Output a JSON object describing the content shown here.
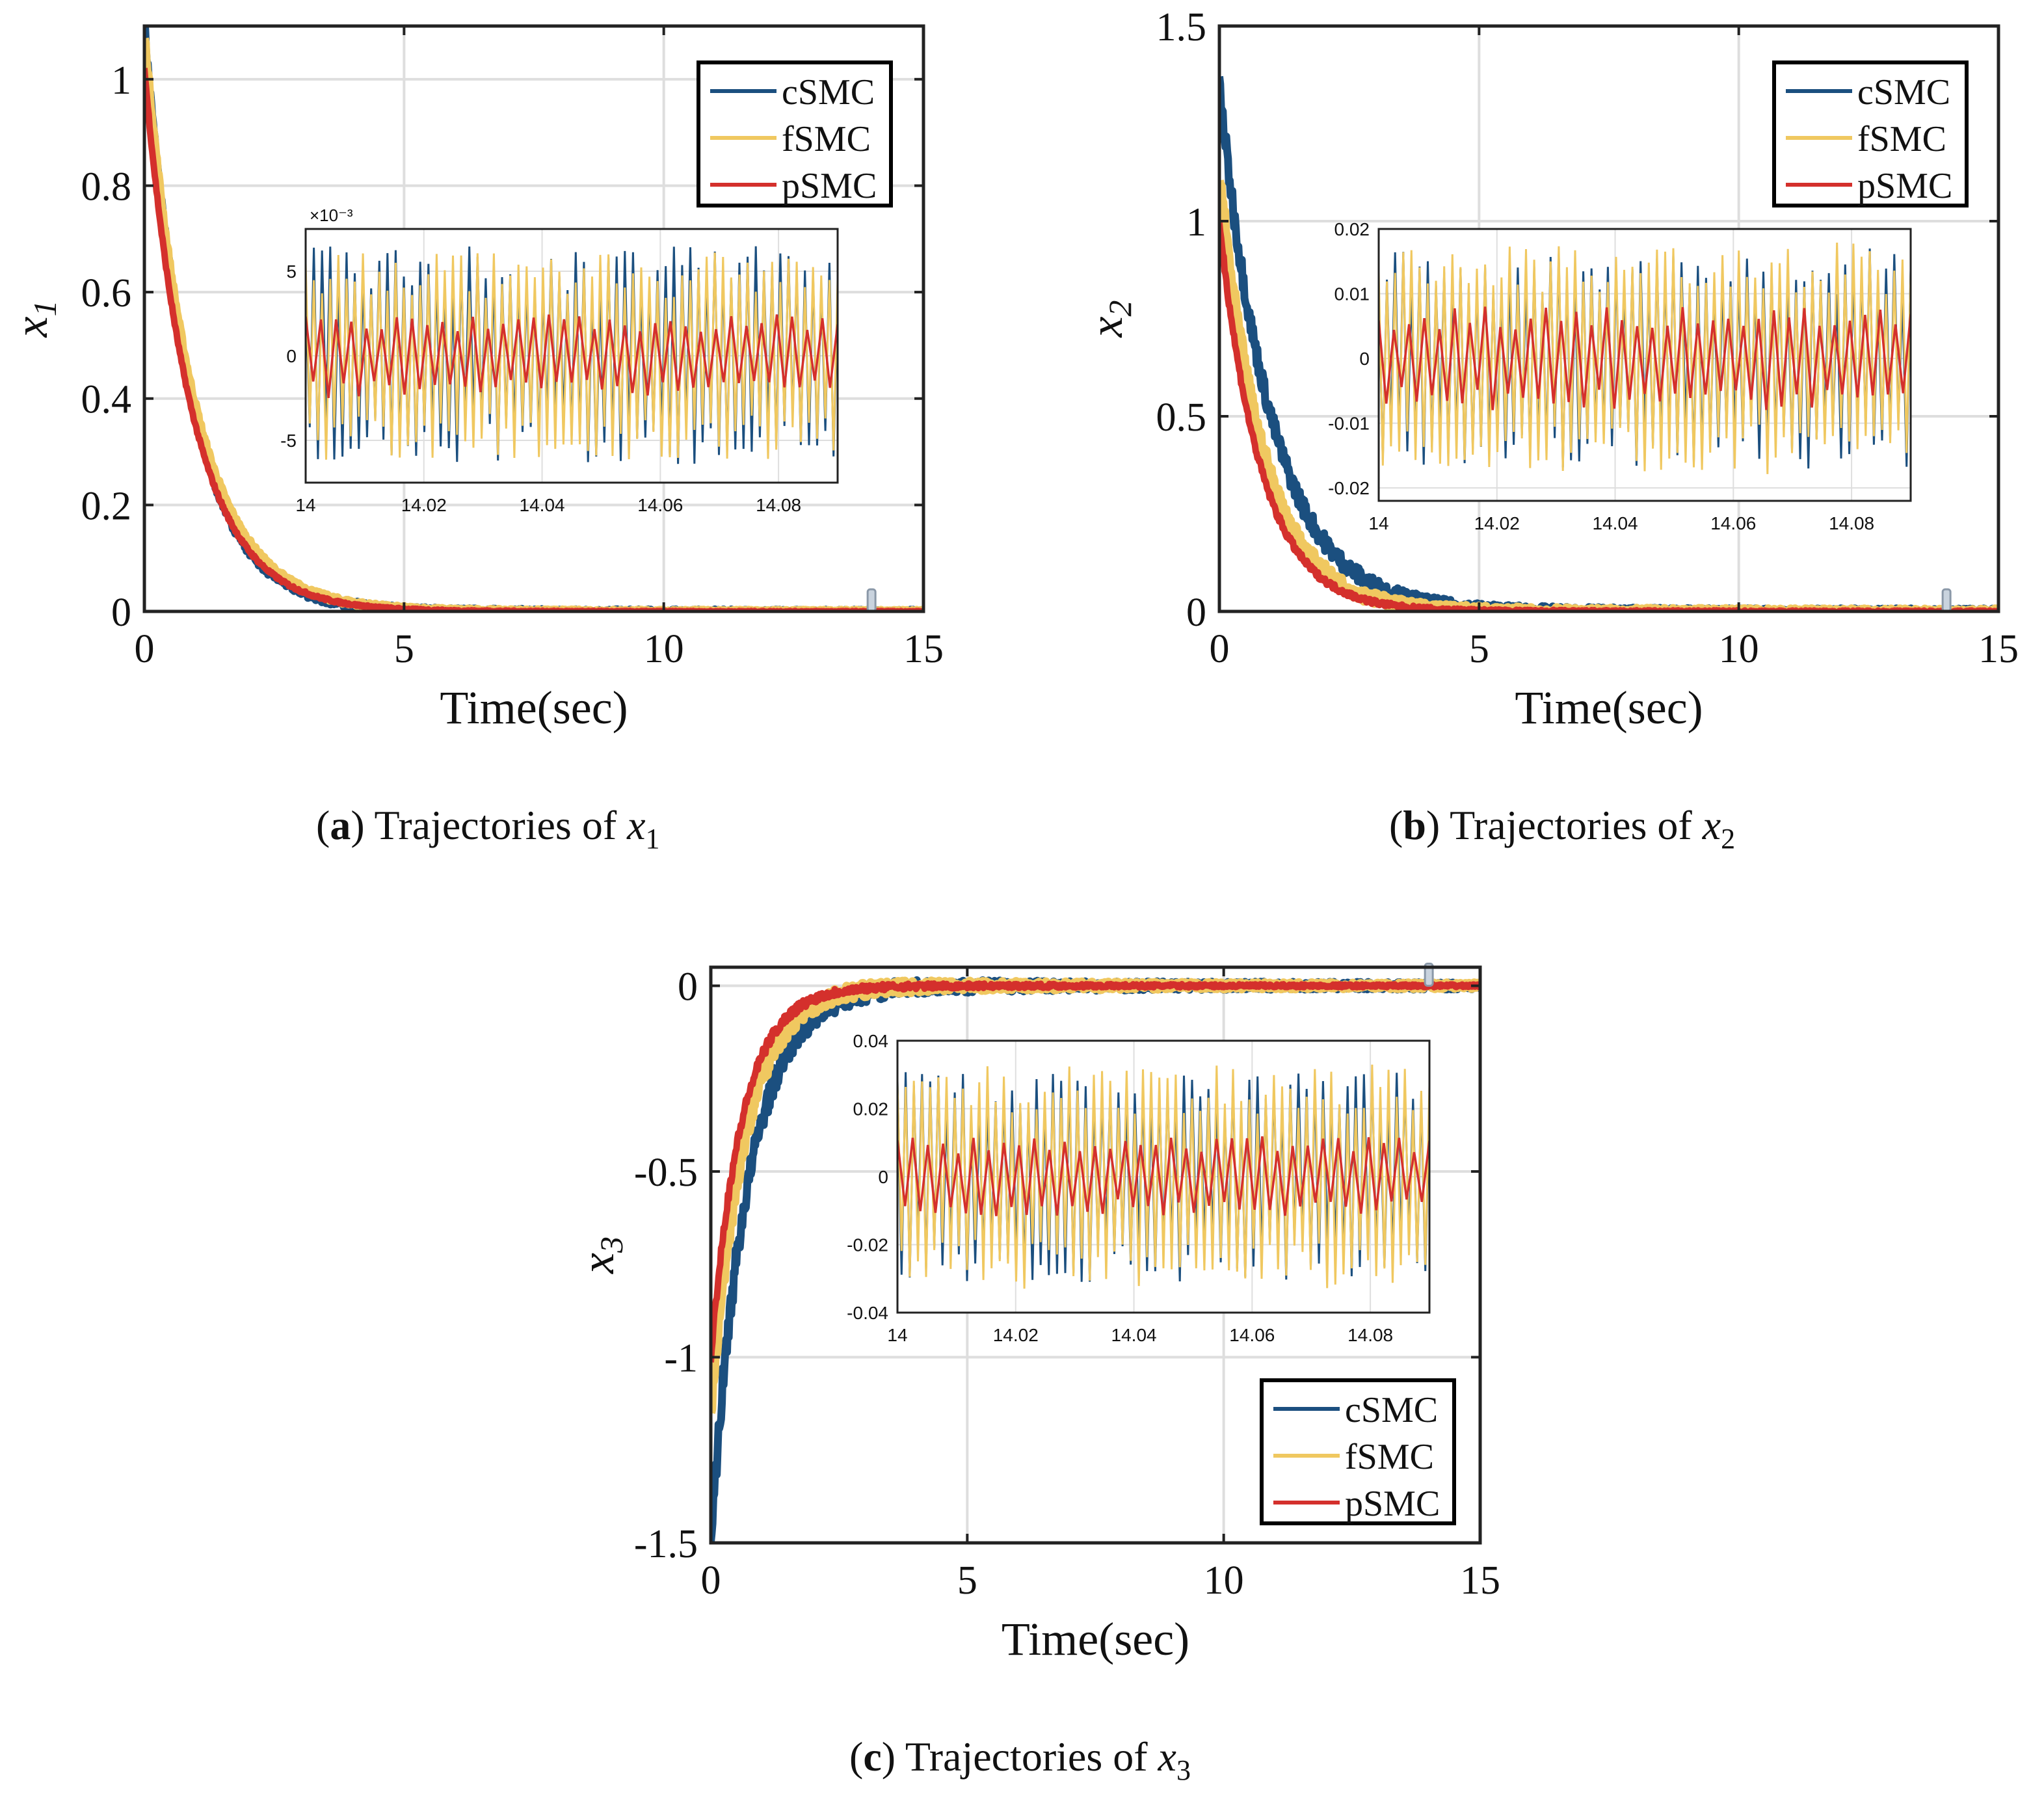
{
  "colors": {
    "cSMC": "#1b4f7f",
    "fSMC": "#f0c860",
    "pSMC": "#d4302c",
    "grid": "#dedede",
    "axis": "#222222"
  },
  "chart_data": [
    {
      "type": "line",
      "panel": "a",
      "xlabel": "Time(sec)",
      "ylabel": "x",
      "ylabel_sub": "1",
      "xlim": [
        0,
        15
      ],
      "ylim": [
        0,
        1.1
      ],
      "xticks": [
        0,
        5,
        10,
        15
      ],
      "xtick_labels": [
        "0",
        "5",
        "10",
        "15"
      ],
      "yticks": [
        0,
        0.2,
        0.4,
        0.6,
        0.8,
        1
      ],
      "ytick_labels": [
        "0",
        "0.2",
        "0.4",
        "0.6",
        "0.8",
        "1"
      ],
      "legend": {
        "position": "top-right",
        "entries": [
          "cSMC",
          "fSMC",
          "pSMC"
        ]
      },
      "series": [
        {
          "name": "cSMC",
          "x0": 1.1,
          "tau": 0.9,
          "noise": 0.014
        },
        {
          "name": "fSMC",
          "x0": 1.08,
          "tau": 0.95,
          "noise": 0.008
        },
        {
          "name": "pSMC",
          "x0": 1.02,
          "tau": 0.92,
          "noise": 0.004
        }
      ],
      "inset": {
        "xlim": [
          14,
          14.09
        ],
        "ylim": [
          -0.0075,
          0.0075
        ],
        "xticks": [
          14,
          14.02,
          14.04,
          14.06,
          14.08
        ],
        "xtick_labels": [
          "14",
          "14.02",
          "14.04",
          "14.06",
          "14.08"
        ],
        "yticks": [
          -0.005,
          0,
          0.005
        ],
        "ytick_labels": [
          "-5",
          "0",
          "5"
        ],
        "exponent_label": "×10⁻³",
        "amplitudes": {
          "cSMC": 0.0065,
          "fSMC": 0.0062,
          "pSMC": 0.0025
        }
      },
      "caption": {
        "letter": "a",
        "text": "Trajectories of",
        "var": "x",
        "sub": "1"
      }
    },
    {
      "type": "line",
      "panel": "b",
      "xlabel": "Time(sec)",
      "ylabel": "x",
      "ylabel_sub": "2",
      "xlim": [
        0,
        15
      ],
      "ylim": [
        0,
        1.5
      ],
      "xticks": [
        0,
        5,
        10,
        15
      ],
      "xtick_labels": [
        "0",
        "5",
        "10",
        "15"
      ],
      "yticks": [
        0,
        0.5,
        1,
        1.5
      ],
      "ytick_labels": [
        "0",
        "0.5",
        "1",
        "1.5"
      ],
      "legend": {
        "position": "top-right",
        "entries": [
          "cSMC",
          "fSMC",
          "pSMC"
        ]
      },
      "series": [
        {
          "name": "cSMC",
          "x0": 1.35,
          "tau": 1.0,
          "noise": 0.03
        },
        {
          "name": "fSMC",
          "x0": 1.12,
          "tau": 0.85,
          "noise": 0.025
        },
        {
          "name": "pSMC",
          "x0": 1.0,
          "tau": 0.8,
          "noise": 0.01
        }
      ],
      "inset": {
        "xlim": [
          14,
          14.09
        ],
        "ylim": [
          -0.022,
          0.02
        ],
        "xticks": [
          14,
          14.02,
          14.04,
          14.06,
          14.08
        ],
        "xtick_labels": [
          "14",
          "14.02",
          "14.04",
          "14.06",
          "14.08"
        ],
        "yticks": [
          -0.02,
          -0.01,
          0,
          0.01,
          0.02
        ],
        "ytick_labels": [
          "-0.02",
          "-0.01",
          "0",
          "0.01",
          "0.02"
        ],
        "exponent_label": "",
        "amplitudes": {
          "cSMC": 0.017,
          "fSMC": 0.018,
          "pSMC": 0.008
        }
      },
      "caption": {
        "letter": "b",
        "text": "Trajectories of",
        "var": "x",
        "sub": "2"
      }
    },
    {
      "type": "line",
      "panel": "c",
      "xlabel": "Time(sec)",
      "ylabel": "x",
      "ylabel_sub": "3",
      "xlim": [
        0,
        15
      ],
      "ylim": [
        -1.5,
        0.05
      ],
      "xticks": [
        0,
        5,
        10,
        15
      ],
      "xtick_labels": [
        "0",
        "5",
        "10",
        "15"
      ],
      "yticks": [
        -1.5,
        -1,
        -0.5,
        0
      ],
      "ytick_labels": [
        "-1.5",
        "-1",
        "-0.5",
        "0"
      ],
      "legend": {
        "position": "bottom-right",
        "entries": [
          "cSMC",
          "fSMC",
          "pSMC"
        ]
      },
      "series": [
        {
          "name": "cSMC",
          "x0": -1.5,
          "tau": 0.7,
          "noise": 0.04
        },
        {
          "name": "fSMC",
          "x0": -1.15,
          "tau": 0.65,
          "noise": 0.03
        },
        {
          "name": "pSMC",
          "x0": -1.0,
          "tau": 0.6,
          "noise": 0.015
        }
      ],
      "inset": {
        "xlim": [
          14,
          14.09
        ],
        "ylim": [
          -0.04,
          0.04
        ],
        "xticks": [
          14,
          14.02,
          14.04,
          14.06,
          14.08
        ],
        "xtick_labels": [
          "14",
          "14.02",
          "14.04",
          "14.06",
          "14.08"
        ],
        "yticks": [
          -0.04,
          -0.02,
          0,
          0.02,
          0.04
        ],
        "ytick_labels": [
          "-0.04",
          "-0.02",
          "0",
          "0.02",
          "0.04"
        ],
        "exponent_label": "",
        "amplitudes": {
          "cSMC": 0.031,
          "fSMC": 0.033,
          "pSMC": 0.012
        }
      },
      "caption": {
        "letter": "c",
        "text": "Trajectories of",
        "var": "x",
        "sub": "3"
      }
    }
  ]
}
